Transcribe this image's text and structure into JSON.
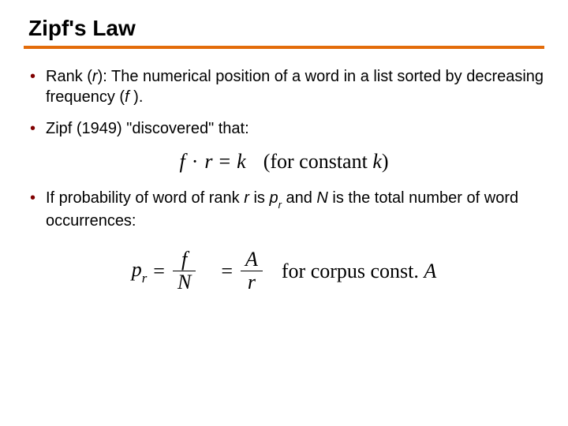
{
  "title": "Zipf's Law",
  "hr_color": "#e36c0a",
  "bullet_color": "#800000",
  "bullets": {
    "b1_pre": "Rank (",
    "b1_r": "r",
    "b1_mid": "): The numerical position of a word in a list sorted by decreasing frequency (",
    "b1_f": "f",
    "b1_post": " ).",
    "b2": "Zipf (1949) \"discovered\" that:",
    "b3_pre": "If probability of word of rank ",
    "b3_r": "r",
    "b3_mid1": " is ",
    "b3_p": "p",
    "b3_rsub": "r",
    "b3_mid2": " and ",
    "b3_N": "N",
    "b3_post": " is the total number of word occurrences:"
  },
  "formula1": {
    "f": "f",
    "dot": "·",
    "r": "r",
    "eq": "=",
    "k": "k",
    "note_pre": "(for constant ",
    "note_k": "k",
    "note_post": ")"
  },
  "formula2": {
    "p": "p",
    "rsub": "r",
    "eq1": "=",
    "num1": "f",
    "den1": "N",
    "eq2": "=",
    "num2": "A",
    "den2": "r",
    "note_pre": "for corpus const. ",
    "note_A": "A"
  }
}
